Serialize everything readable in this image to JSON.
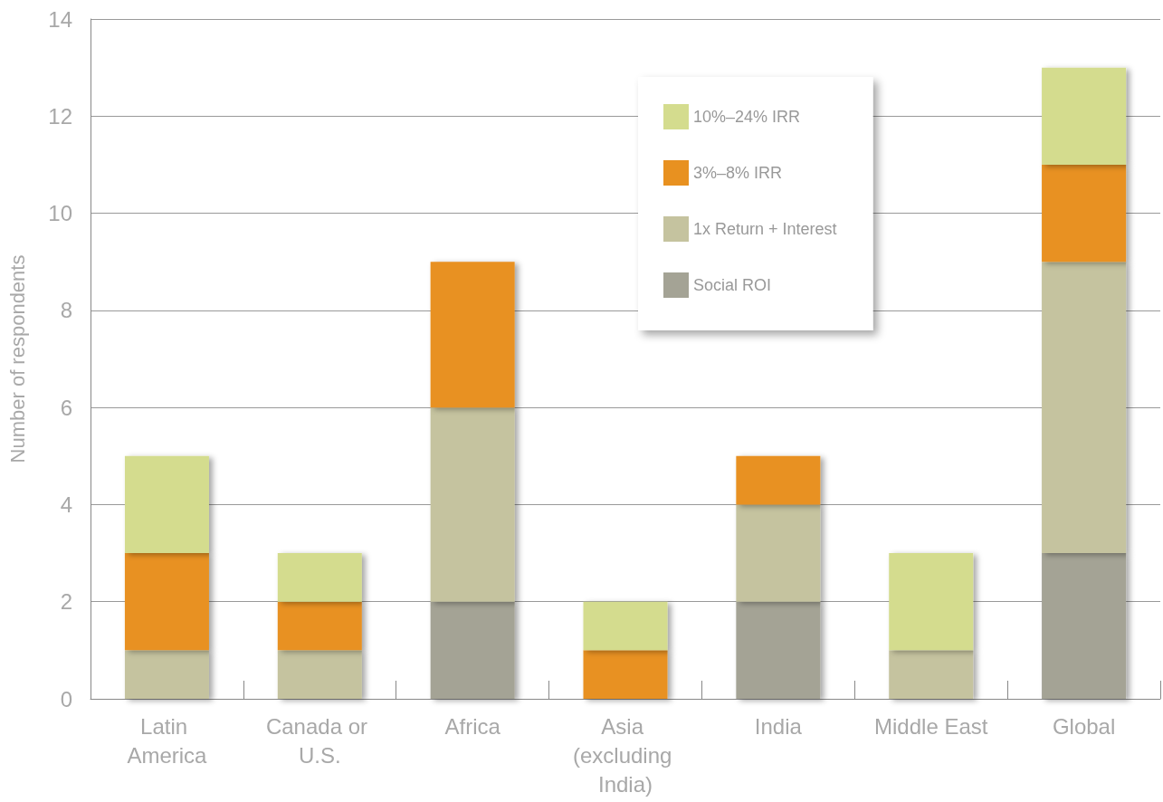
{
  "chart_data": {
    "type": "bar",
    "stacked": true,
    "ylabel": "Number of respondents",
    "categories": [
      "Latin America",
      "Canada or U.S.",
      "Africa",
      "Asia (excluding India)",
      "India",
      "Middle East",
      "Global"
    ],
    "series": [
      {
        "name": "Social ROI",
        "color": "#a4a395",
        "values": [
          0,
          0,
          2,
          0,
          2,
          0,
          3
        ]
      },
      {
        "name": "1x Return + Interest",
        "color": "#c5c39f",
        "values": [
          1,
          1,
          4,
          0,
          2,
          1,
          6
        ]
      },
      {
        "name": "3%–8% IRR",
        "color": "#e89120",
        "values": [
          2,
          1,
          3,
          1,
          1,
          0,
          2
        ]
      },
      {
        "name": "10%–24% IRR",
        "color": "#d4dc8e",
        "values": [
          2,
          1,
          0,
          1,
          0,
          2,
          2
        ]
      }
    ],
    "ylim": [
      0,
      14
    ],
    "yticks": [
      0,
      2,
      4,
      6,
      8,
      10,
      12,
      14
    ],
    "grid": "y",
    "legend": "top right"
  }
}
